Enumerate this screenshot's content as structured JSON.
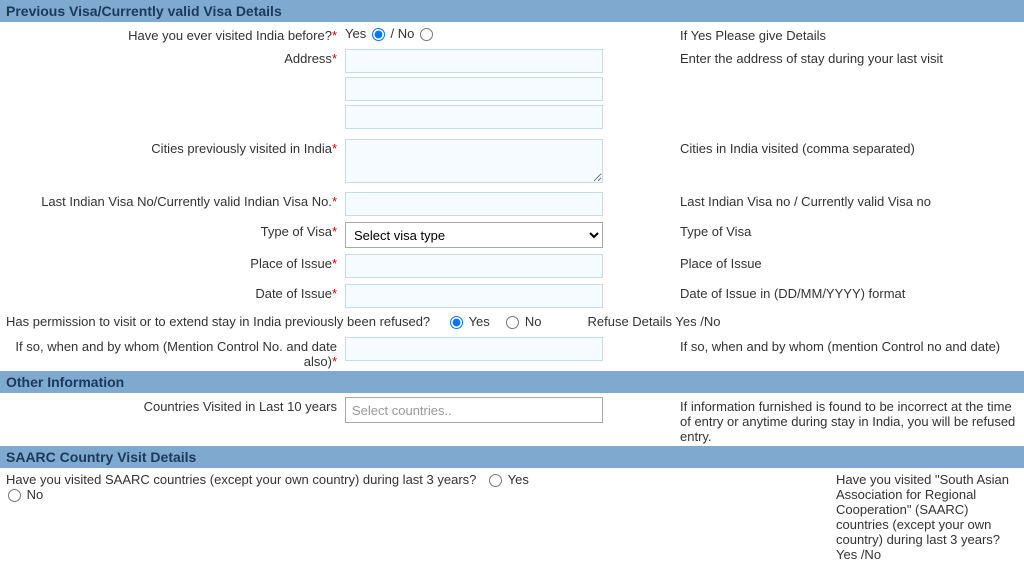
{
  "sections": {
    "prev_visa_header": "Previous Visa/Currently valid Visa Details",
    "other_info_header": "Other Information",
    "saarc_header": "SAARC Country Visit Details"
  },
  "fields": {
    "visited_before": {
      "label": "Have you ever visited India before?",
      "yes": "Yes",
      "no": "No",
      "sep": " / ",
      "help": "If Yes Please give Details"
    },
    "address": {
      "label": "Address",
      "help": "Enter the address of stay during your last visit"
    },
    "cities": {
      "label": "Cities previously visited in India",
      "help": "Cities in India visited (comma separated)"
    },
    "visa_no": {
      "label": "Last Indian Visa No/Currently valid Indian Visa No.",
      "help": "Last Indian Visa no / Currently valid Visa no"
    },
    "visa_type": {
      "label": "Type of Visa",
      "placeholder": "Select visa type",
      "help": "Type of Visa"
    },
    "place_issue": {
      "label": "Place of Issue",
      "help": "Place of Issue"
    },
    "date_issue": {
      "label": "Date of Issue",
      "help": "Date of Issue in (DD/MM/YYYY) format"
    },
    "refused": {
      "label": "Has permission to visit or to extend stay in India previously been refused?",
      "yes": "Yes",
      "no": "No",
      "help": "Refuse Details Yes /No"
    },
    "refused_detail": {
      "label": "If so, when and by whom (Mention Control No. and date also)",
      "help": "If so, when and by whom (mention Control no and date)"
    },
    "countries_10y": {
      "label": "Countries Visited in Last 10 years",
      "placeholder": "Select countries..",
      "help": "If information furnished is found to be incorrect at the time of entry or anytime during stay in India, you will be refused entry."
    },
    "saarc": {
      "label": "Have you visited SAARC countries (except your own country) during last 3 years?",
      "yes": "Yes",
      "no": "No",
      "help": "Have you visited \"South Asian Association for Regional Cooperation\" (SAARC) countries (except your own country) during last 3 years? Yes /No"
    }
  },
  "star": "*"
}
